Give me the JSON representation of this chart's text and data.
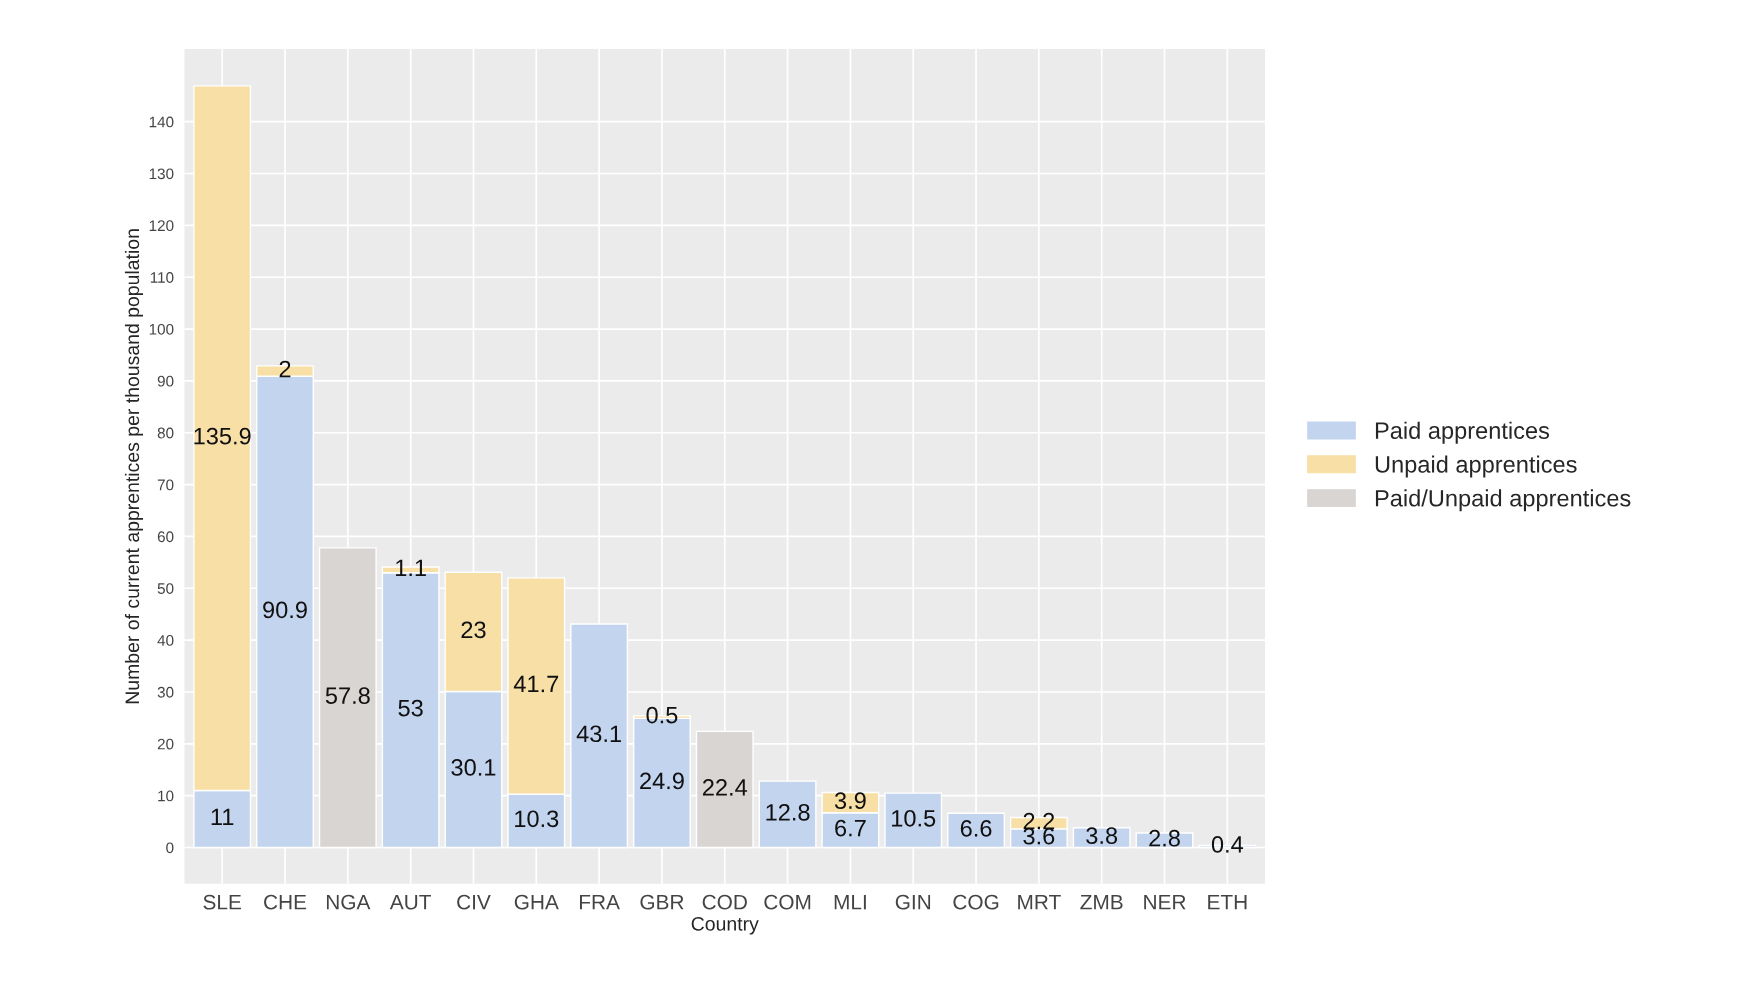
{
  "chart_data": {
    "type": "bar",
    "stacked": true,
    "xlabel": "Country",
    "ylabel": "Number of current apprentices per thousand population",
    "categories": [
      "SLE",
      "CHE",
      "NGA",
      "AUT",
      "CIV",
      "GHA",
      "FRA",
      "GBR",
      "COD",
      "COM",
      "MLI",
      "GIN",
      "COG",
      "MRT",
      "ZMB",
      "NER",
      "ETH"
    ],
    "series": [
      {
        "name": "Paid apprentices",
        "color": "#c3d4ee",
        "values": [
          11,
          90.9,
          null,
          53,
          30.1,
          10.3,
          43.1,
          24.9,
          null,
          12.8,
          6.7,
          10.5,
          6.6,
          3.6,
          3.8,
          2.8,
          0.4
        ]
      },
      {
        "name": "Unpaid apprentices",
        "color": "#f7dfa6",
        "values": [
          135.9,
          2,
          null,
          1.1,
          23,
          41.7,
          null,
          0.5,
          null,
          null,
          3.9,
          null,
          null,
          2.2,
          null,
          null,
          null
        ]
      },
      {
        "name": "Paid/Unpaid apprentices",
        "color": "#d8d5d2",
        "values": [
          null,
          null,
          57.8,
          null,
          null,
          null,
          null,
          null,
          22.4,
          null,
          null,
          null,
          null,
          null,
          null,
          null,
          null
        ]
      }
    ],
    "ylim": [
      -7,
      154
    ],
    "yticks": [
      0,
      10,
      20,
      30,
      40,
      50,
      60,
      70,
      80,
      90,
      100,
      110,
      120,
      130,
      140
    ],
    "grid": true,
    "legend": "right",
    "data_labels": true
  }
}
